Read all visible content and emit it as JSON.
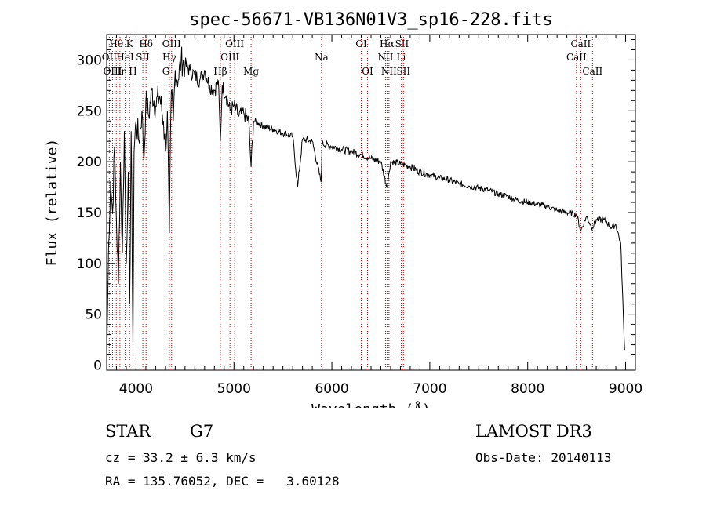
{
  "chart_data": {
    "type": "line",
    "title": "spec-56671-VB136N01V3_sp16-228.fits",
    "xlabel": "Wavelength (Å)",
    "ylabel": "Flux (relative)",
    "xlim": [
      3700,
      9100
    ],
    "ylim": [
      -5,
      325
    ],
    "xticks": [
      4000,
      5000,
      6000,
      7000,
      8000,
      9000
    ],
    "yticks": [
      0,
      50,
      100,
      150,
      200,
      250,
      300
    ],
    "series": [
      {
        "name": "flux",
        "x": [
          3700,
          3720,
          3740,
          3760,
          3780,
          3800,
          3820,
          3840,
          3860,
          3880,
          3900,
          3920,
          3935,
          3950,
          3968,
          3980,
          4000,
          4030,
          4060,
          4080,
          4100,
          4130,
          4160,
          4200,
          4240,
          4280,
          4300,
          4320,
          4340,
          4360,
          4380,
          4400,
          4430,
          4460,
          4500,
          4550,
          4600,
          4650,
          4700,
          4750,
          4800,
          4840,
          4861,
          4880,
          4920,
          4960,
          5000,
          5050,
          5100,
          5150,
          5175,
          5200,
          5250,
          5300,
          5400,
          5500,
          5600,
          5650,
          5700,
          5800,
          5890,
          5900,
          6000,
          6100,
          6200,
          6300,
          6400,
          6500,
          6563,
          6600,
          6700,
          6800,
          6900,
          7000,
          7100,
          7200,
          7300,
          7400,
          7500,
          7600,
          7700,
          7800,
          7900,
          8000,
          8100,
          8200,
          8300,
          8400,
          8500,
          8542,
          8600,
          8662,
          8700,
          8800,
          8850,
          8900,
          8950,
          8990
        ],
        "values": [
          0,
          120,
          180,
          150,
          215,
          140,
          80,
          200,
          110,
          230,
          100,
          190,
          60,
          230,
          20,
          210,
          240,
          220,
          250,
          200,
          260,
          245,
          270,
          255,
          265,
          240,
          210,
          250,
          130,
          270,
          240,
          290,
          280,
          300,
          295,
          290,
          285,
          280,
          290,
          275,
          270,
          280,
          220,
          275,
          265,
          250,
          255,
          245,
          248,
          240,
          195,
          240,
          238,
          235,
          232,
          228,
          225,
          175,
          222,
          220,
          180,
          218,
          215,
          212,
          210,
          207,
          203,
          200,
          175,
          200,
          198,
          195,
          190,
          187,
          184,
          182,
          178,
          176,
          174,
          172,
          168,
          166,
          162,
          160,
          158,
          156,
          152,
          150,
          148,
          132,
          146,
          135,
          143,
          142,
          135,
          138,
          120,
          15
        ]
      }
    ],
    "spectral_lines": [
      {
        "label": "Hθ",
        "wavelength": 3798,
        "row": 0
      },
      {
        "label": "OII",
        "wavelength": 3727,
        "row": 1
      },
      {
        "label": "OIII",
        "wavelength": 3760,
        "row": 2
      },
      {
        "label": "K",
        "wavelength": 3934,
        "row": 0
      },
      {
        "label": "HeI",
        "wavelength": 3889,
        "row": 1
      },
      {
        "label": "Hη",
        "wavelength": 3835,
        "row": 2
      },
      {
        "label": "H",
        "wavelength": 3968,
        "row": 2
      },
      {
        "label": "SII",
        "wavelength": 4069,
        "row": 1
      },
      {
        "label": "Hδ",
        "wavelength": 4102,
        "row": 0
      },
      {
        "label": "OIII",
        "wavelength": 4363,
        "row": 0
      },
      {
        "label": "Hγ",
        "wavelength": 4340,
        "row": 1
      },
      {
        "label": "G",
        "wavelength": 4305,
        "row": 2
      },
      {
        "label": "OIII",
        "wavelength": 5007,
        "row": 0
      },
      {
        "label": "OIII",
        "wavelength": 4959,
        "row": 1
      },
      {
        "label": "Hβ",
        "wavelength": 4861,
        "row": 2
      },
      {
        "label": "Mg",
        "wavelength": 5175,
        "row": 2
      },
      {
        "label": "Na",
        "wavelength": 5894,
        "row": 1
      },
      {
        "label": "OI",
        "wavelength": 6300,
        "row": 0
      },
      {
        "label": "OI",
        "wavelength": 6364,
        "row": 2
      },
      {
        "label": "Hα",
        "wavelength": 6563,
        "row": 0
      },
      {
        "label": "SII",
        "wavelength": 6716,
        "row": 0
      },
      {
        "label": "NII",
        "wavelength": 6548,
        "row": 1
      },
      {
        "label": "Li",
        "wavelength": 6708,
        "row": 1
      },
      {
        "label": "NII",
        "wavelength": 6583,
        "row": 2
      },
      {
        "label": "SII",
        "wavelength": 6731,
        "row": 2
      },
      {
        "label": "CaII",
        "wavelength": 8542,
        "row": 0
      },
      {
        "label": "CaII",
        "wavelength": 8498,
        "row": 1
      },
      {
        "label": "CaII",
        "wavelength": 8662,
        "row": 2
      }
    ]
  },
  "info": {
    "class": "STAR",
    "subclass": "G7",
    "survey": "LAMOST DR3",
    "cz": "cz = 33.2 ± 6.3 km/s",
    "obs_date": "Obs-Date: 20140113",
    "radec": "RA = 135.76052, DEC =   3.60128"
  }
}
